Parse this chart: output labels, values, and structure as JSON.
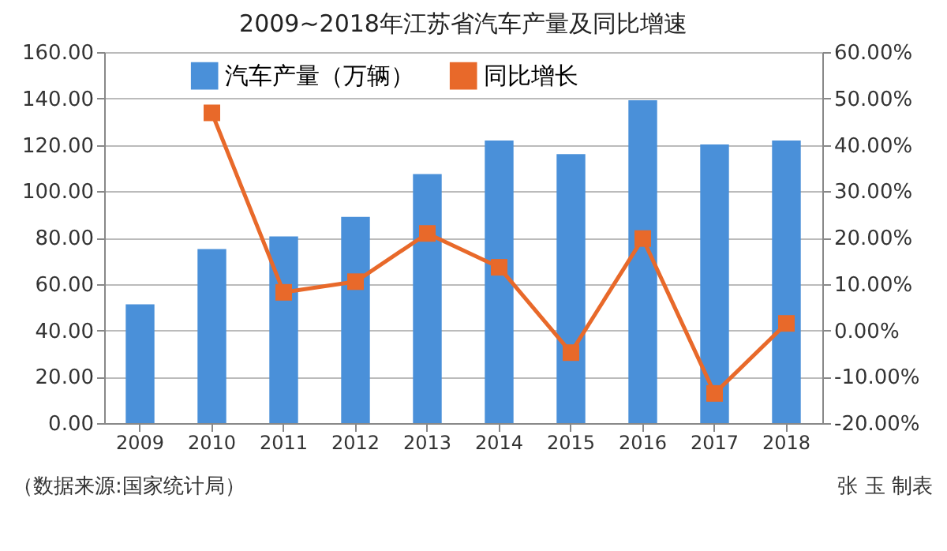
{
  "chart_data": {
    "type": "bar",
    "title": "2009~2018年江苏省汽车产量及同比增速",
    "categories": [
      "2009",
      "2010",
      "2011",
      "2012",
      "2013",
      "2014",
      "2015",
      "2016",
      "2017",
      "2018"
    ],
    "series": [
      {
        "name": "汽车产量（万辆）",
        "color": "#4a90d9",
        "values": [
          51.2,
          75.1,
          80.5,
          88.9,
          107.4,
          121.9,
          116.0,
          139.2,
          120.2,
          121.9
        ]
      },
      {
        "name": "同比增长",
        "type": "line",
        "axis": "y2",
        "color": "#e8692a",
        "marker": "square",
        "values": [
          null,
          46.9,
          8.2,
          10.5,
          20.9,
          13.6,
          -4.8,
          19.8,
          -13.6,
          1.5
        ]
      }
    ],
    "ylim": [
      0,
      160
    ],
    "yticks": [
      {
        "value": 0,
        "label": "0.00"
      },
      {
        "value": 20,
        "label": "20.00"
      },
      {
        "value": 40,
        "label": "40.00"
      },
      {
        "value": 60,
        "label": "60.00"
      },
      {
        "value": 80,
        "label": "80.00"
      },
      {
        "value": 100,
        "label": "100.00"
      },
      {
        "value": 120,
        "label": "120.00"
      },
      {
        "value": 140,
        "label": "140.00"
      },
      {
        "value": 160,
        "label": "160.00"
      }
    ],
    "y2lim": [
      -20,
      60
    ],
    "y2ticks": [
      {
        "value": -20,
        "label": "-20.00%"
      },
      {
        "value": -10,
        "label": "-10.00%"
      },
      {
        "value": 0,
        "label": "0.00%"
      },
      {
        "value": 10,
        "label": "10.00%"
      },
      {
        "value": 20,
        "label": "20.00%"
      },
      {
        "value": 30,
        "label": "30.00%"
      },
      {
        "value": 40,
        "label": "40.00%"
      },
      {
        "value": 50,
        "label": "50.00%"
      },
      {
        "value": 60,
        "label": "60.00%"
      }
    ],
    "grid": "y",
    "legend": "top",
    "annotations": [
      "（数据来源:国家统计局）",
      "张 玉 制表"
    ]
  }
}
